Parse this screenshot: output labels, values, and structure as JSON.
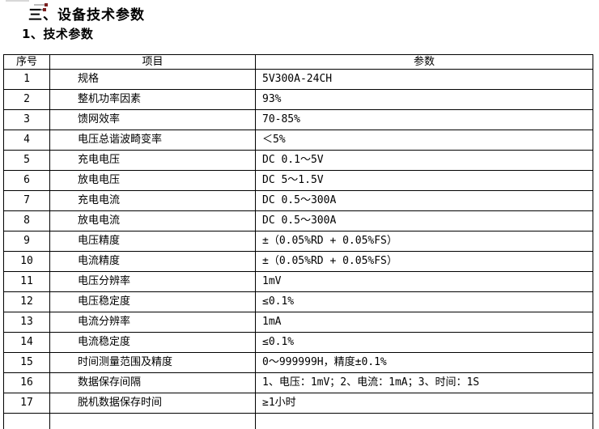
{
  "page": {
    "background_color": "#ffffff",
    "text_color": "#000000",
    "border_color": "#000000"
  },
  "heading": {
    "title": "三、设备技术参数",
    "subtitle": "1、技术参数"
  },
  "table": {
    "columns": [
      "序号",
      "项目",
      "参数"
    ],
    "rows": [
      {
        "no": "1",
        "item": "规格",
        "value": "5V300A-24CH"
      },
      {
        "no": "2",
        "item": "整机功率因素",
        "value": "93%"
      },
      {
        "no": "3",
        "item": "馈网效率",
        "value": "70-85%"
      },
      {
        "no": "4",
        "item": "电压总谐波畸变率",
        "value": "＜5%"
      },
      {
        "no": "5",
        "item": "充电电压",
        "value": "DC 0.1～5V"
      },
      {
        "no": "6",
        "item": "放电电压",
        "value": "DC 5～1.5V"
      },
      {
        "no": "7",
        "item": "充电电流",
        "value": "DC 0.5～300A"
      },
      {
        "no": "8",
        "item": "放电电流",
        "value": "DC 0.5～300A"
      },
      {
        "no": "9",
        "item": "电压精度",
        "value": "±（0.05%RD + 0.05%FS）"
      },
      {
        "no": "10",
        "item": "电流精度",
        "value": "±（0.05%RD + 0.05%FS）"
      },
      {
        "no": "11",
        "item": "电压分辨率",
        "value": "1mV"
      },
      {
        "no": "12",
        "item": "电压稳定度",
        "value": "≤0.1%"
      },
      {
        "no": "13",
        "item": "电流分辨率",
        "value": "1mA"
      },
      {
        "no": "14",
        "item": "电流稳定度",
        "value": "≤0.1%"
      },
      {
        "no": "15",
        "item": "时间测量范围及精度",
        "value": "0～999999H，精度±0.1%"
      },
      {
        "no": "16",
        "item": "数据保存间隔",
        "value": "1、电压：1mV；2、电流：1mA；3、时间：1S"
      },
      {
        "no": "17",
        "item": "脱机数据保存时间",
        "value": "≥1小时"
      }
    ]
  }
}
